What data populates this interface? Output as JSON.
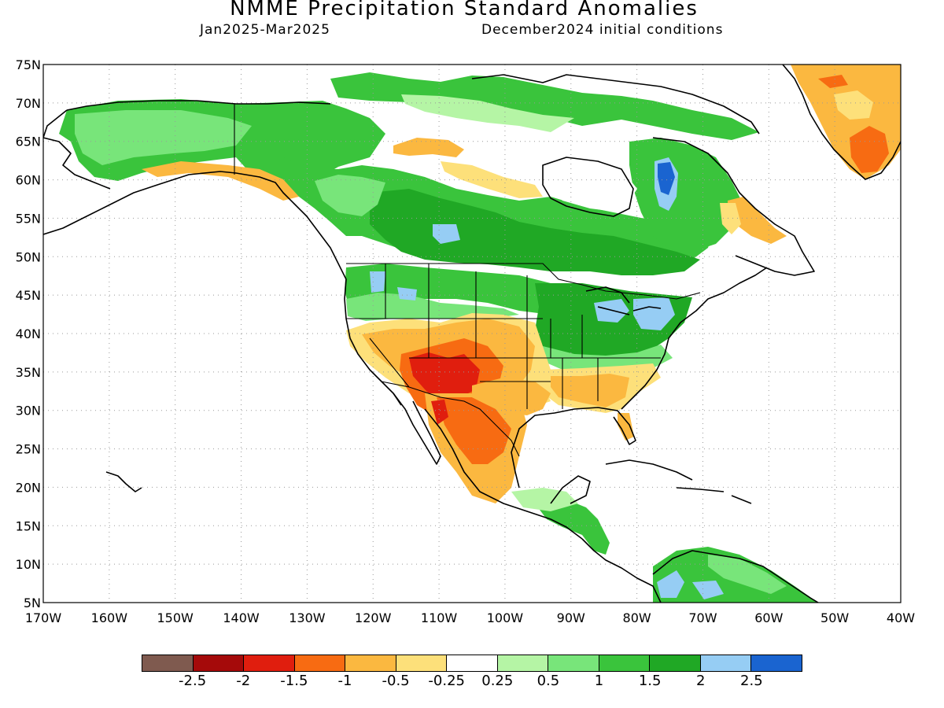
{
  "title": "NMME Precipitation Standard Anomalies",
  "period": "Jan2025-Mar2025",
  "initial_conditions": "December2024 initial conditions",
  "lon_labels": [
    "170W",
    "160W",
    "150W",
    "140W",
    "130W",
    "120W",
    "110W",
    "100W",
    "90W",
    "80W",
    "70W",
    "60W",
    "50W",
    "40W"
  ],
  "lat_labels": [
    "75N",
    "70N",
    "65N",
    "60N",
    "55N",
    "50N",
    "45N",
    "40N",
    "35N",
    "30N",
    "25N",
    "20N",
    "15N",
    "10N",
    "5N"
  ],
  "colorbar": {
    "colors": [
      "#7f5a4f",
      "#a50a0a",
      "#e01e0e",
      "#f76b12",
      "#fbb840",
      "#fde07a",
      "#ffffff",
      "#b5f5a5",
      "#78e57a",
      "#3ac43c",
      "#20a825",
      "#96cdf4",
      "#1a64d0"
    ],
    "labels": [
      "-2.5",
      "-2",
      "-1.5",
      "-1",
      "-0.5",
      "-0.25",
      "0.25",
      "0.5",
      "1",
      "1.5",
      "2",
      "2.5"
    ]
  }
}
